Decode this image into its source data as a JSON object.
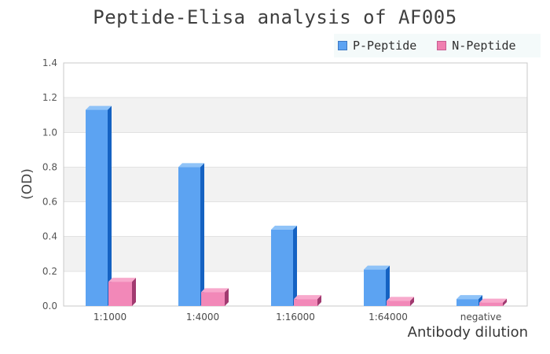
{
  "title": "Peptide-Elisa analysis of AF005",
  "legend": {
    "items": [
      {
        "label": "P-Peptide",
        "color": "#5CA3F2",
        "border": "#3E79C4"
      },
      {
        "label": "N-Peptide",
        "color": "#F07FB0",
        "border": "#C75E92"
      }
    ]
  },
  "chart_data": {
    "type": "bar",
    "title": "Peptide-Elisa analysis of AF005",
    "categories": [
      "1:1000",
      "1:4000",
      "1:16000",
      "1:64000",
      "negative"
    ],
    "series": [
      {
        "name": "P-Peptide",
        "values": [
          1.13,
          0.8,
          0.44,
          0.21,
          0.04
        ],
        "color": "#5CA3F2",
        "top_color": "#8FC3F8",
        "side_color": "#1562C2"
      },
      {
        "name": "N-Peptide",
        "values": [
          0.14,
          0.08,
          0.04,
          0.03,
          0.02
        ],
        "color": "#F288B8",
        "top_color": "#F8A9CC",
        "side_color": "#A13A70"
      }
    ],
    "xlabel": "Antibody dilution",
    "ylabel": "(OD)",
    "ylim": [
      0,
      1.4
    ],
    "yticks": [
      0,
      0.2,
      0.4,
      0.6,
      0.8,
      1.0,
      1.2,
      1.4
    ],
    "grid": true,
    "effect": "3d",
    "legend_position": "top-right",
    "plot_background_bands": [
      "#ffffff",
      "#f2f2f2"
    ],
    "gridline_color": "#e2e2e2",
    "plot_border_color": "#c8c8c8"
  }
}
